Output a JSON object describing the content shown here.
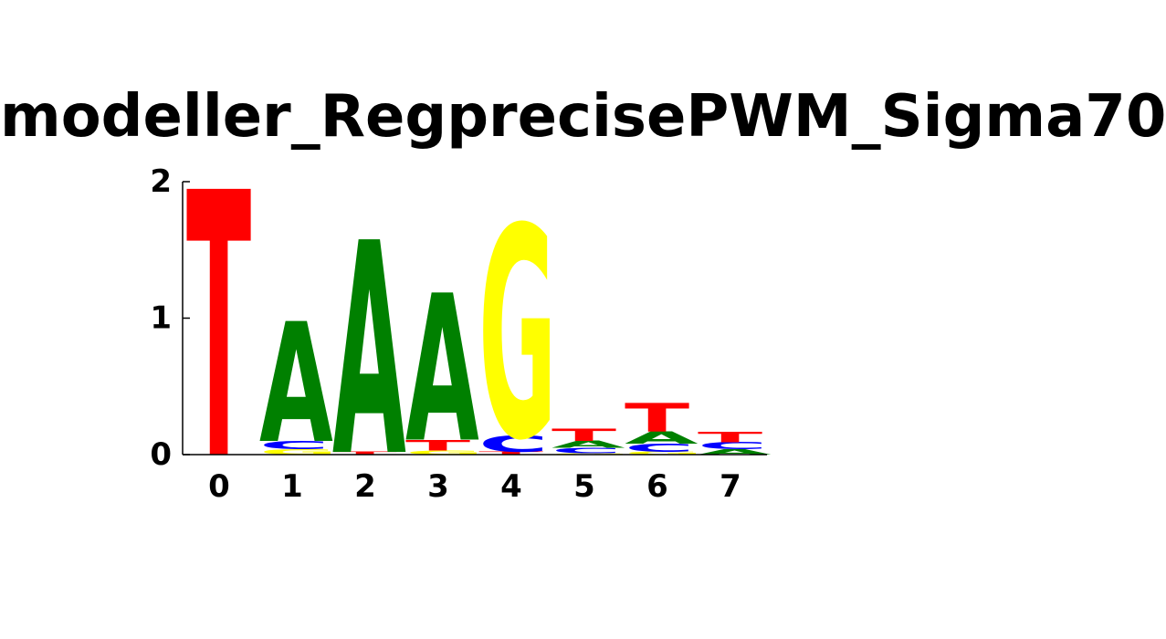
{
  "chart_data": {
    "type": "sequence-logo",
    "title": "modeller_RegprecisePWM_Sigma70",
    "xlabel": "",
    "ylabel": "",
    "ylim": [
      0,
      2
    ],
    "y_ticks": [
      "0",
      "1",
      "2"
    ],
    "positions": [
      "0",
      "1",
      "2",
      "3",
      "4",
      "5",
      "6",
      "7"
    ],
    "colors": {
      "A": "#008000",
      "C": "#0000ff",
      "G": "#ffff00",
      "T": "#ff0000"
    },
    "stacks": [
      [
        {
          "letter": "T",
          "height": 1.95
        }
      ],
      [
        {
          "letter": "G",
          "height": 0.04
        },
        {
          "letter": "C",
          "height": 0.06
        },
        {
          "letter": "A",
          "height": 0.88
        }
      ],
      [
        {
          "letter": "T",
          "height": 0.02
        },
        {
          "letter": "A",
          "height": 1.56
        }
      ],
      [
        {
          "letter": "G",
          "height": 0.03
        },
        {
          "letter": "T",
          "height": 0.08
        },
        {
          "letter": "A",
          "height": 1.08
        }
      ],
      [
        {
          "letter": "T",
          "height": 0.02
        },
        {
          "letter": "C",
          "height": 0.12
        },
        {
          "letter": "G",
          "height": 1.55
        }
      ],
      [
        {
          "letter": "G",
          "height": 0.01
        },
        {
          "letter": "C",
          "height": 0.04
        },
        {
          "letter": "A",
          "height": 0.05
        },
        {
          "letter": "T",
          "height": 0.09
        }
      ],
      [
        {
          "letter": "G",
          "height": 0.02
        },
        {
          "letter": "C",
          "height": 0.06
        },
        {
          "letter": "A",
          "height": 0.09
        },
        {
          "letter": "T",
          "height": 0.21
        }
      ],
      [
        {
          "letter": "A",
          "height": 0.04
        },
        {
          "letter": "C",
          "height": 0.05
        },
        {
          "letter": "T",
          "height": 0.08
        }
      ]
    ]
  }
}
